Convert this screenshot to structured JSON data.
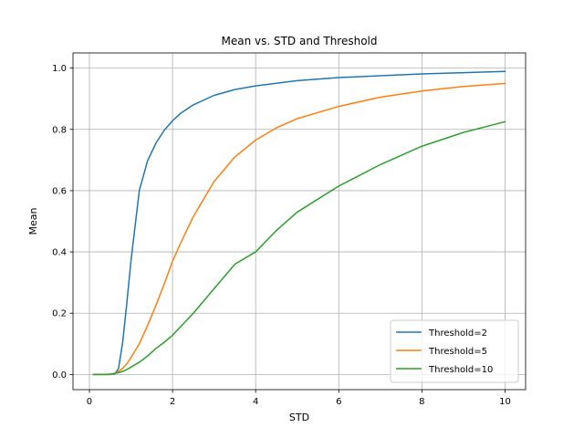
{
  "chart_data": {
    "type": "line",
    "title": "Mean vs. STD and Threshold",
    "xlabel": "STD",
    "ylabel": "Mean",
    "xlim": [
      -0.395,
      10.495
    ],
    "ylim": [
      -0.0495,
      1.0495
    ],
    "xticks": [
      0,
      2,
      4,
      6,
      8,
      10
    ],
    "yticks": [
      0.0,
      0.2,
      0.4,
      0.6,
      0.8,
      1.0
    ],
    "xtick_labels": [
      "0",
      "2",
      "4",
      "6",
      "8",
      "10"
    ],
    "ytick_labels": [
      "0.0",
      "0.2",
      "0.4",
      "0.6",
      "0.8",
      "1.0"
    ],
    "grid": true,
    "legend_placement": "lower-right",
    "series": [
      {
        "name": "Threshold=2",
        "color": "#1f77b4",
        "x": [
          0.1,
          0.2,
          0.3,
          0.4,
          0.5,
          0.6,
          0.7,
          0.8,
          0.9,
          1.0,
          1.2,
          1.4,
          1.6,
          1.8,
          2.0,
          2.2,
          2.5,
          3.0,
          3.5,
          4.0,
          5.0,
          6.0,
          7.0,
          8.0,
          9.0,
          10.0
        ],
        "values": [
          0.0,
          0.0,
          0.0,
          0.0,
          0.0,
          0.001,
          0.019,
          0.105,
          0.233,
          0.371,
          0.6,
          0.698,
          0.755,
          0.797,
          0.828,
          0.853,
          0.88,
          0.911,
          0.93,
          0.942,
          0.959,
          0.969,
          0.975,
          0.981,
          0.985,
          0.989
        ]
      },
      {
        "name": "Threshold=5",
        "color": "#ff7f0e",
        "x": [
          0.1,
          0.2,
          0.3,
          0.4,
          0.5,
          0.6,
          0.7,
          0.8,
          0.9,
          1.0,
          1.2,
          1.4,
          1.6,
          1.8,
          2.0,
          2.2,
          2.5,
          3.0,
          3.5,
          4.0,
          4.5,
          5.0,
          6.0,
          7.0,
          8.0,
          9.0,
          10.0
        ],
        "values": [
          0.0,
          0.0,
          0.0,
          0.0,
          0.0,
          0.003,
          0.01,
          0.02,
          0.035,
          0.055,
          0.1,
          0.16,
          0.225,
          0.295,
          0.37,
          0.43,
          0.515,
          0.63,
          0.71,
          0.765,
          0.805,
          0.835,
          0.875,
          0.905,
          0.925,
          0.94,
          0.95
        ]
      },
      {
        "name": "Threshold=10",
        "color": "#2ca02c",
        "x": [
          0.1,
          0.2,
          0.3,
          0.4,
          0.5,
          0.6,
          0.7,
          0.8,
          0.9,
          1.0,
          1.2,
          1.4,
          1.6,
          1.8,
          2.0,
          2.5,
          3.0,
          3.5,
          4.0,
          4.5,
          5.0,
          6.0,
          7.0,
          8.0,
          9.0,
          10.0
        ],
        "values": [
          0.0,
          0.0,
          0.0,
          0.0,
          0.001,
          0.003,
          0.006,
          0.01,
          0.016,
          0.024,
          0.04,
          0.06,
          0.085,
          0.105,
          0.128,
          0.2,
          0.28,
          0.36,
          0.4,
          0.47,
          0.53,
          0.615,
          0.685,
          0.745,
          0.79,
          0.825
        ]
      }
    ]
  }
}
